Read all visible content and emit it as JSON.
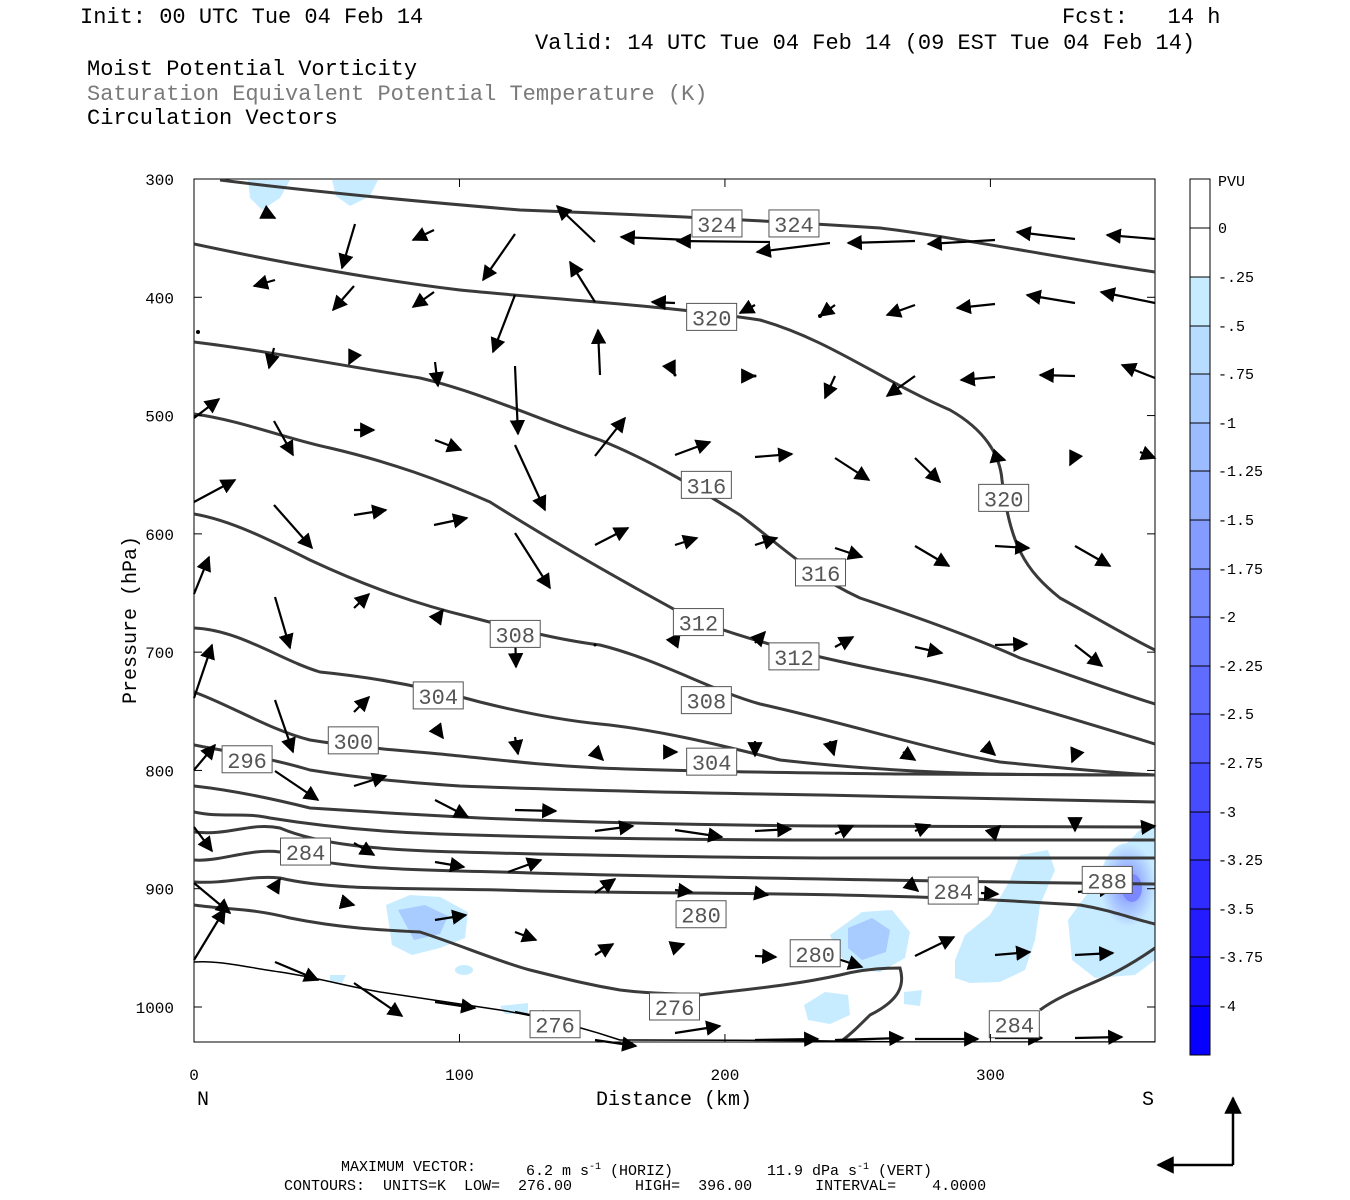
{
  "header": {
    "init": "Init: 00 UTC Tue 04 Feb 14",
    "fcst": "Fcst:   14 h",
    "valid": "Valid: 14 UTC Tue 04 Feb 14 (09 EST Tue 04 Feb 14)",
    "field1": "Moist Potential Vorticity",
    "field2": "Saturation Equivalent Potential Temperature (K)",
    "field3": "Circulation Vectors"
  },
  "chart_data": {
    "type": "cross-section",
    "xlabel": "Distance (km)",
    "ylabel": "Pressure (hPa)",
    "x_ticks": [
      "0",
      "100",
      "200",
      "300"
    ],
    "y_ticks": [
      "300",
      "400",
      "500",
      "600",
      "700",
      "800",
      "900",
      "1000"
    ],
    "xlim": [
      0,
      362
    ],
    "ylim": [
      300,
      1040
    ],
    "end_labels": {
      "left": "N",
      "right": "S"
    },
    "colorbar": {
      "title": "PVU",
      "labels": [
        "0",
        "-.25",
        "-.5",
        "-.75",
        "-1",
        "-1.25",
        "-1.5",
        "-1.75",
        "-2",
        "-2.25",
        "-2.5",
        "-2.75",
        "-3",
        "-3.25",
        "-3.5",
        "-3.75",
        "-4"
      ],
      "colors": [
        "#ffffff",
        "#ffffff",
        "#c8ecff",
        "#b8dcff",
        "#a8ccff",
        "#9cbcff",
        "#90acff",
        "#849cff",
        "#788cff",
        "#6c7cff",
        "#606cff",
        "#545cff",
        "#484cff",
        "#3c3cff",
        "#302cff",
        "#241cff",
        "#1810ff",
        "#0800ff"
      ]
    },
    "contour_levels": [
      276,
      280,
      284,
      288,
      296,
      300,
      304,
      308,
      312,
      316,
      320,
      324
    ],
    "contour_labels": [
      {
        "text": "324",
        "x": 197,
        "p": 338
      },
      {
        "text": "324",
        "x": 226,
        "p": 338
      },
      {
        "text": "320",
        "x": 195,
        "p": 417
      },
      {
        "text": "320",
        "x": 305,
        "p": 570
      },
      {
        "text": "316",
        "x": 193,
        "p": 559
      },
      {
        "text": "316",
        "x": 236,
        "p": 633
      },
      {
        "text": "312",
        "x": 190,
        "p": 675
      },
      {
        "text": "312",
        "x": 226,
        "p": 704
      },
      {
        "text": "308",
        "x": 121,
        "p": 685
      },
      {
        "text": "308",
        "x": 193,
        "p": 741
      },
      {
        "text": "304",
        "x": 92,
        "p": 737
      },
      {
        "text": "304",
        "x": 195,
        "p": 793
      },
      {
        "text": "300",
        "x": 60,
        "p": 775
      },
      {
        "text": "296",
        "x": 20,
        "p": 791
      },
      {
        "text": "284",
        "x": 42,
        "p": 869
      },
      {
        "text": "284",
        "x": 286,
        "p": 902
      },
      {
        "text": "284",
        "x": 309,
        "p": 1015
      },
      {
        "text": "288",
        "x": 344,
        "p": 893
      },
      {
        "text": "280",
        "x": 191,
        "p": 922
      },
      {
        "text": "280",
        "x": 234,
        "p": 955
      },
      {
        "text": "276",
        "x": 181,
        "p": 1000
      },
      {
        "text": "276",
        "x": 136,
        "p": 1015
      }
    ],
    "pv_areas": [
      {
        "label": "-0.5 PVU patch",
        "x_center": 88,
        "p_center": 930
      },
      {
        "label": "-1.0 PVU patch",
        "x_center": 254,
        "p_center": 945
      },
      {
        "label": "-1.0 PVU patch",
        "x_center": 352,
        "p_center": 895
      }
    ],
    "max_vector": {
      "horiz": "6.2 m s",
      "vert": "11.9 dPa s"
    }
  },
  "footer": {
    "max_vector_label": "MAXIMUM VECTOR:",
    "horiz_value": "6.2 m s",
    "horiz_unit": "(HORIZ)",
    "vert_value": "11.9 dPa s",
    "vert_unit": "(VERT)",
    "exp": "-1",
    "contours": "CONTOURS:  UNITS=K  LOW=  276.00       HIGH=  396.00       INTERVAL=    4.0000"
  }
}
